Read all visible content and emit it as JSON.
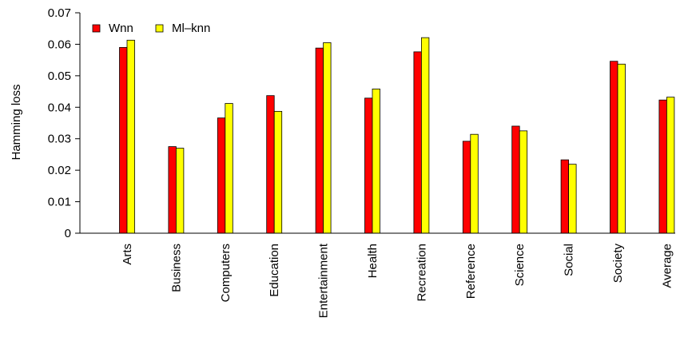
{
  "chart_data": {
    "type": "bar",
    "title": "",
    "xlabel": "",
    "ylabel": "Hamming loss",
    "ylim": [
      0,
      0.07
    ],
    "yticks": [
      "0",
      "0.01",
      "0.02",
      "0.03",
      "0.04",
      "0.05",
      "0.06",
      "0.07"
    ],
    "grid": false,
    "legend_position": "top-left",
    "categories": [
      "Arts",
      "Business",
      "Computers",
      "Education",
      "Entertainment",
      "Health",
      "Recreation",
      "Reference",
      "Science",
      "Social",
      "Society",
      "Average"
    ],
    "series": [
      {
        "name": "Wnn",
        "color": "#ff0000",
        "values": [
          0.059,
          0.0275,
          0.0366,
          0.0437,
          0.0588,
          0.0429,
          0.0576,
          0.0292,
          0.034,
          0.0233,
          0.0546,
          0.0423
        ]
      },
      {
        "name": "Ml–knn",
        "color": "#ffff00",
        "values": [
          0.0613,
          0.027,
          0.0412,
          0.0387,
          0.0605,
          0.0458,
          0.0621,
          0.0314,
          0.0325,
          0.0219,
          0.0537,
          0.0432
        ]
      }
    ]
  }
}
